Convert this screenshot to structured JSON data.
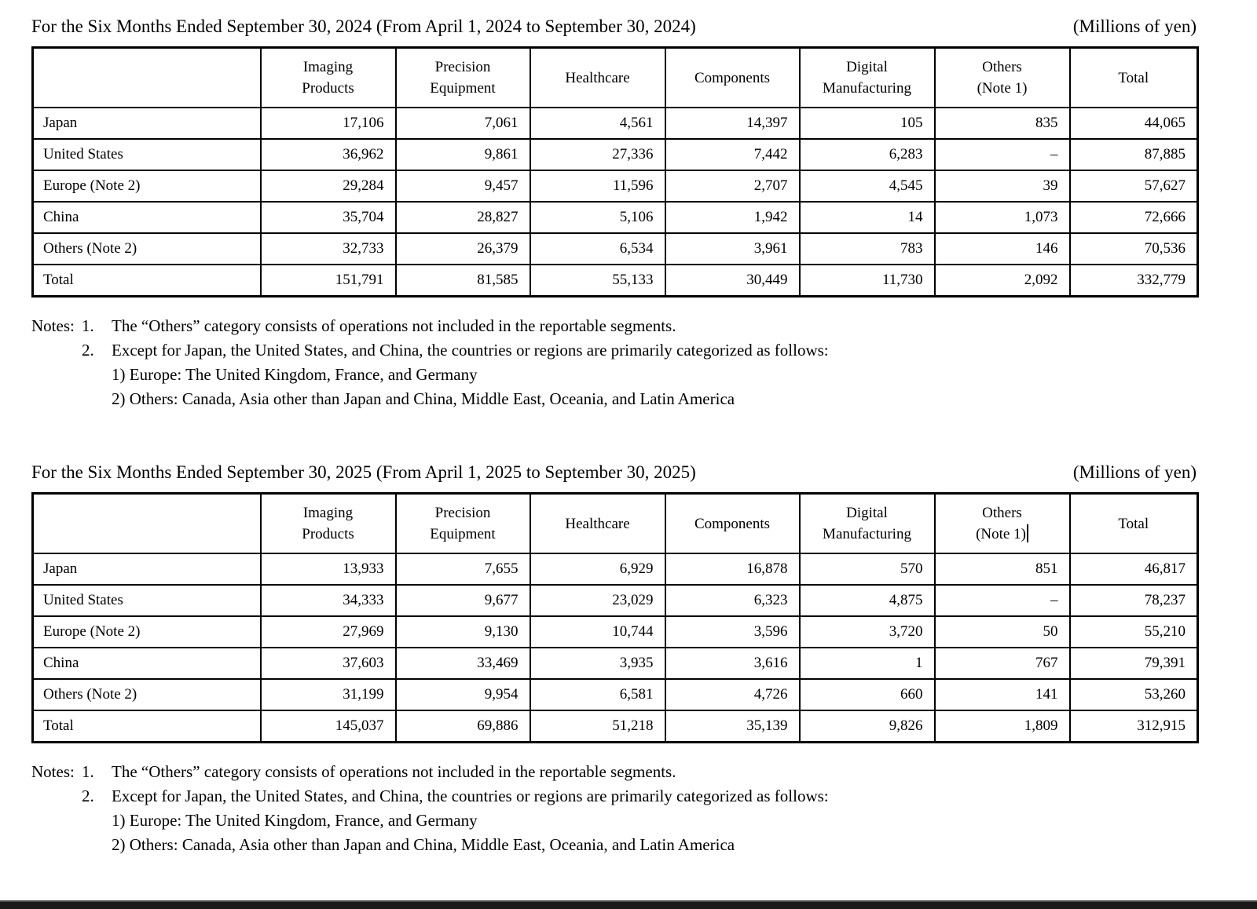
{
  "colors": {
    "text": "#000000",
    "background": "#ffffff",
    "clipped_strip": "#1a1a1a"
  },
  "sections": [
    {
      "title": "For the Six Months Ended September 30, 2024 (From April 1, 2024 to September 30, 2024)",
      "unit_label": "(Millions of yen)",
      "table": {
        "column_headers": [
          [
            "Imaging",
            "Products"
          ],
          [
            "Precision",
            "Equipment"
          ],
          [
            "Healthcare"
          ],
          [
            "Components"
          ],
          [
            "Digital",
            "Manufacturing"
          ],
          [
            "Others",
            "(Note 1)"
          ],
          [
            "Total"
          ]
        ],
        "cursor_after_others_header": false,
        "rows": [
          {
            "label": "Japan",
            "values": [
              "17,106",
              "7,061",
              "4,561",
              "14,397",
              "105",
              "835",
              "44,065"
            ]
          },
          {
            "label": "United States",
            "values": [
              "36,962",
              "9,861",
              "27,336",
              "7,442",
              "6,283",
              "–",
              "87,885"
            ]
          },
          {
            "label": "Europe (Note 2)",
            "values": [
              "29,284",
              "9,457",
              "11,596",
              "2,707",
              "4,545",
              "39",
              "57,627"
            ]
          },
          {
            "label": "China",
            "values": [
              "35,704",
              "28,827",
              "5,106",
              "1,942",
              "14",
              "1,073",
              "72,666"
            ]
          },
          {
            "label": "Others (Note 2)",
            "values": [
              "32,733",
              "26,379",
              "6,534",
              "3,961",
              "783",
              "146",
              "70,536"
            ]
          },
          {
            "label": "Total",
            "values": [
              "151,791",
              "81,585",
              "55,133",
              "30,449",
              "11,730",
              "2,092",
              "332,779"
            ]
          }
        ]
      },
      "notes": {
        "label": "Notes:",
        "items": [
          {
            "num": "1.",
            "text": "The “Others” category consists of operations not included in the reportable segments."
          },
          {
            "num": "2.",
            "text": "Except for Japan, the United States, and China, the countries or regions are primarily categorized as follows:"
          }
        ],
        "subitems": [
          "1) Europe: The United Kingdom, France, and Germany",
          "2) Others: Canada, Asia other than Japan and China, Middle East, Oceania, and Latin America"
        ]
      }
    },
    {
      "title": "For the Six Months Ended September 30, 2025 (From April 1, 2025 to September 30, 2025)",
      "unit_label": "(Millions of yen)",
      "table": {
        "column_headers": [
          [
            "Imaging",
            "Products"
          ],
          [
            "Precision",
            "Equipment"
          ],
          [
            "Healthcare"
          ],
          [
            "Components"
          ],
          [
            "Digital",
            "Manufacturing"
          ],
          [
            "Others",
            "(Note 1)"
          ],
          [
            "Total"
          ]
        ],
        "cursor_after_others_header": true,
        "rows": [
          {
            "label": "Japan",
            "values": [
              "13,933",
              "7,655",
              "6,929",
              "16,878",
              "570",
              "851",
              "46,817"
            ]
          },
          {
            "label": "United States",
            "values": [
              "34,333",
              "9,677",
              "23,029",
              "6,323",
              "4,875",
              "–",
              "78,237"
            ]
          },
          {
            "label": "Europe (Note 2)",
            "values": [
              "27,969",
              "9,130",
              "10,744",
              "3,596",
              "3,720",
              "50",
              "55,210"
            ]
          },
          {
            "label": "China",
            "values": [
              "37,603",
              "33,469",
              "3,935",
              "3,616",
              "1",
              "767",
              "79,391"
            ]
          },
          {
            "label": "Others (Note 2)",
            "values": [
              "31,199",
              "9,954",
              "6,581",
              "4,726",
              "660",
              "141",
              "53,260"
            ]
          },
          {
            "label": "Total",
            "values": [
              "145,037",
              "69,886",
              "51,218",
              "35,139",
              "9,826",
              "1,809",
              "312,915"
            ]
          }
        ]
      },
      "notes": {
        "label": "Notes:",
        "items": [
          {
            "num": "1.",
            "text": "The “Others” category consists of operations not included in the reportable segments."
          },
          {
            "num": "2.",
            "text": "Except for Japan, the United States, and China, the countries or regions are primarily categorized as follows:"
          }
        ],
        "subitems": [
          "1) Europe: The United Kingdom, France, and Germany",
          "2) Others: Canada, Asia other than Japan and China, Middle East, Oceania, and Latin America"
        ]
      }
    }
  ]
}
